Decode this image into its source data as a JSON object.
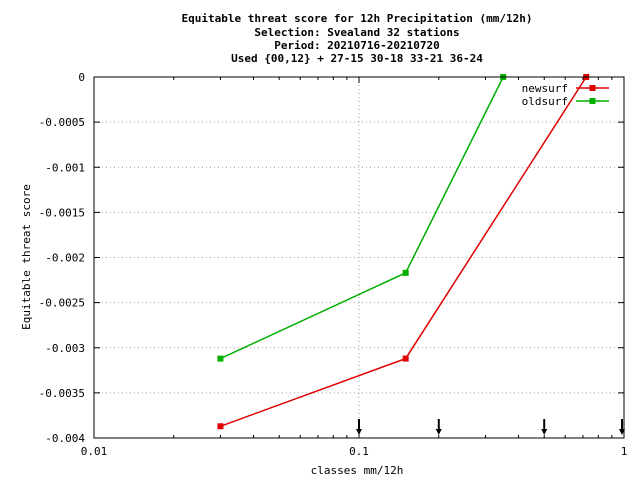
{
  "chart_data": {
    "type": "line",
    "title_lines": [
      "Equitable threat score  for 12h Precipitation (mm/12h)",
      "Selection: Svealand     32 stations",
      "Period: 20210716-20210720",
      "Used {00,12} + 27-15 30-18 33-21 36-24"
    ],
    "xlabel": "classes mm/12h",
    "ylabel": "Equitable threat score",
    "x_scale": "log",
    "xlim": [
      0.01,
      1
    ],
    "ylim": [
      -0.004,
      0
    ],
    "x_ticks": [
      {
        "value": 0.01,
        "label": "0.01"
      },
      {
        "value": 0.1,
        "label": "0.1"
      },
      {
        "value": 1,
        "label": "1"
      }
    ],
    "y_ticks": [
      {
        "value": 0,
        "label": "0"
      },
      {
        "value": -0.0005,
        "label": "-0.0005"
      },
      {
        "value": -0.001,
        "label": "-0.001"
      },
      {
        "value": -0.0015,
        "label": "-0.0015"
      },
      {
        "value": -0.002,
        "label": "-0.002"
      },
      {
        "value": -0.0025,
        "label": "-0.0025"
      },
      {
        "value": -0.003,
        "label": "-0.003"
      },
      {
        "value": -0.0035,
        "label": "-0.0035"
      },
      {
        "value": -0.004,
        "label": "-0.004"
      }
    ],
    "grid": true,
    "legend_position": "top-right",
    "series": [
      {
        "name": "newsurf",
        "color": "#e00000",
        "x": [
          0.03,
          0.15,
          0.72
        ],
        "y": [
          -0.00387,
          -0.00312,
          0.0
        ]
      },
      {
        "name": "oldsurf",
        "color": "#00b000",
        "x": [
          0.03,
          0.15,
          0.35
        ],
        "y": [
          -0.00312,
          -0.00217,
          0.0
        ]
      }
    ],
    "threshold_arrows": [
      0.1,
      0.2,
      0.5,
      1.0
    ]
  }
}
